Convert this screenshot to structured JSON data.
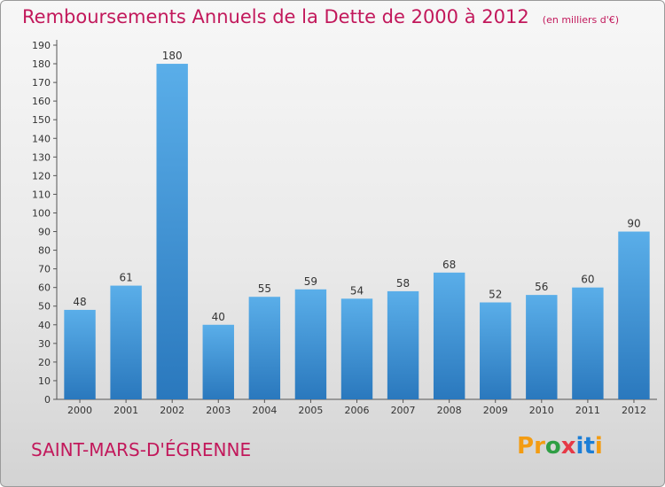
{
  "chart_data": {
    "type": "bar",
    "title": "Remboursements Annuels de la Dette de 2000 à 2012",
    "unit": "(en milliers d'€)",
    "categories": [
      "2000",
      "2001",
      "2002",
      "2003",
      "2004",
      "2005",
      "2006",
      "2007",
      "2008",
      "2009",
      "2010",
      "2011",
      "2012"
    ],
    "values": [
      48,
      61,
      180,
      40,
      55,
      59,
      54,
      58,
      68,
      52,
      56,
      60,
      90
    ],
    "ylim": [
      0,
      190
    ],
    "ytick_step": 10,
    "grid": false,
    "bar_color": "#3c8fd6"
  },
  "footer": {
    "commune": "SAINT-MARS-D'ÉGRENNE",
    "logo_letters": [
      "P",
      "r",
      "o",
      "x",
      "i",
      "t",
      "i"
    ],
    "logo_colors": [
      "#f39c12",
      "#f39c12",
      "#2f9e44",
      "#e63946",
      "#1c7ed6",
      "#1c7ed6",
      "#f39c12"
    ]
  }
}
